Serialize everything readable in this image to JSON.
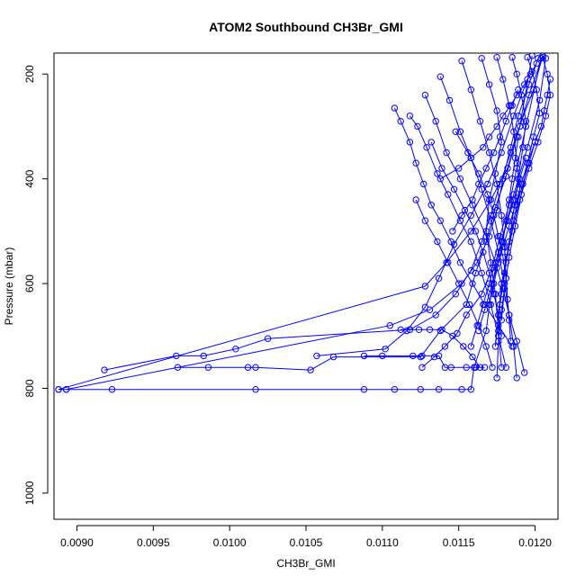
{
  "chart_data": {
    "type": "line",
    "title": "ATOM2 Southbound CH3Br_GMI",
    "xlabel": "CH3Br_GMI",
    "ylabel": "Pressure (mbar)",
    "xlim": [
      0.00885,
      0.01215
    ],
    "ylim": [
      1050,
      160
    ],
    "y_inverted": true,
    "xticks": [
      0.009,
      0.0095,
      0.01,
      0.0105,
      0.011,
      0.0115,
      0.012
    ],
    "xtick_labels": [
      "0.0090",
      "0.0095",
      "0.0100",
      "0.0105",
      "0.0110",
      "0.0115",
      "0.0120"
    ],
    "yticks": [
      200,
      400,
      600,
      800,
      1000
    ],
    "ytick_labels": [
      "200",
      "400",
      "600",
      "800",
      "1000"
    ],
    "grid": false,
    "legend": "none",
    "color": "#0000ff",
    "marker": "open-circle",
    "series": [
      {
        "x": [
          0.00888,
          0.00893,
          0.00923,
          0.01017,
          0.01088,
          0.01108,
          0.01125,
          0.01137,
          0.01152,
          0.01158,
          0.0116,
          0.01168,
          0.01172,
          0.01178,
          0.01186,
          0.01195,
          0.01203,
          0.01207
        ],
        "y": [
          802,
          802,
          802,
          802,
          802,
          802,
          802,
          802,
          802,
          802,
          760,
          690,
          600,
          520,
          430,
          340,
          250,
          170
        ]
      },
      {
        "x": [
          0.00918,
          0.00965,
          0.00983,
          0.01004,
          0.01025,
          0.01118,
          0.01135,
          0.01148,
          0.01158,
          0.01165,
          0.01171,
          0.01177,
          0.01184,
          0.01191,
          0.01199,
          0.01205
        ],
        "y": [
          765,
          738,
          738,
          725,
          705,
          688,
          660,
          620,
          575,
          520,
          470,
          410,
          350,
          290,
          230,
          165
        ]
      },
      {
        "x": [
          0.00966,
          0.00986,
          0.01012,
          0.01017,
          0.01053,
          0.01068,
          0.01125,
          0.01138,
          0.01155,
          0.01161,
          0.01168,
          0.01174,
          0.01181,
          0.01188,
          0.01196,
          0.01205
        ],
        "y": [
          760,
          760,
          760,
          760,
          765,
          740,
          740,
          690,
          640,
          580,
          520,
          455,
          395,
          320,
          240,
          165
        ]
      },
      {
        "x": [
          0.00893,
          0.01105,
          0.01131,
          0.01152,
          0.01162,
          0.0117,
          0.01175,
          0.01179,
          0.01184,
          0.01189,
          0.01196,
          0.01202
        ],
        "y": [
          802,
          680,
          650,
          600,
          560,
          510,
          460,
          400,
          340,
          280,
          220,
          170
        ]
      },
      {
        "x": [
          0.00888,
          0.01128,
          0.01142,
          0.01158,
          0.01171,
          0.01182,
          0.0119,
          0.01198
        ],
        "y": [
          802,
          605,
          560,
          500,
          440,
          380,
          300,
          165
        ]
      },
      {
        "x": [
          0.01126,
          0.01134,
          0.01141,
          0.01149,
          0.01155,
          0.01165,
          0.01172,
          0.01177,
          0.01183,
          0.01188,
          0.01194,
          0.01204
        ],
        "y": [
          760,
          740,
          720,
          695,
          660,
          620,
          570,
          510,
          450,
          380,
          300,
          170
        ]
      },
      {
        "x": [
          0.01057,
          0.01102,
          0.01116,
          0.01128,
          0.01137,
          0.01147,
          0.01158,
          0.01169,
          0.01178,
          0.01186,
          0.01195
        ],
        "y": [
          738,
          725,
          690,
          645,
          590,
          525,
          470,
          410,
          350,
          280,
          210
        ]
      },
      {
        "x": [
          0.01108,
          0.01112,
          0.01118,
          0.01122,
          0.01127,
          0.01132,
          0.01138,
          0.01145,
          0.01151,
          0.01159,
          0.01167,
          0.01176,
          0.01185
        ],
        "y": [
          265,
          290,
          330,
          370,
          410,
          450,
          480,
          520,
          560,
          600,
          640,
          680,
          720
        ]
      },
      {
        "x": [
          0.01118,
          0.01123,
          0.01129,
          0.01136,
          0.01143,
          0.01151,
          0.01158,
          0.01165,
          0.01171,
          0.01176,
          0.01181
        ],
        "y": [
          280,
          300,
          340,
          390,
          430,
          480,
          520,
          580,
          640,
          700,
          760
        ]
      },
      {
        "x": [
          0.01128,
          0.01135,
          0.01142,
          0.01151,
          0.01159,
          0.01168,
          0.01174,
          0.01179,
          0.01183,
          0.01188,
          0.01193
        ],
        "y": [
          240,
          290,
          350,
          400,
          450,
          510,
          560,
          610,
          660,
          710,
          770
        ]
      },
      {
        "x": [
          0.01138,
          0.01144,
          0.01151,
          0.01158,
          0.01165,
          0.01171,
          0.01176,
          0.0118,
          0.01183,
          0.01186,
          0.01188
        ],
        "y": [
          205,
          250,
          310,
          360,
          420,
          480,
          540,
          600,
          660,
          720,
          780
        ]
      },
      {
        "x": [
          0.01152,
          0.01158,
          0.01164,
          0.0117,
          0.01175,
          0.01178,
          0.0118,
          0.01181,
          0.01178,
          0.01176,
          0.01175
        ],
        "y": [
          175,
          230,
          290,
          350,
          410,
          470,
          530,
          590,
          650,
          710,
          780
        ]
      },
      {
        "x": [
          0.01165,
          0.0117,
          0.01175,
          0.01178,
          0.01174,
          0.0117,
          0.01168,
          0.01171,
          0.01174,
          0.01176,
          0.01178
        ],
        "y": [
          170,
          220,
          270,
          330,
          390,
          440,
          500,
          560,
          620,
          690,
          760
        ]
      },
      {
        "x": [
          0.01175,
          0.01179,
          0.01183,
          0.01186,
          0.01188,
          0.0119,
          0.01186,
          0.01182,
          0.01178,
          0.01176,
          0.01174
        ],
        "y": [
          168,
          210,
          260,
          310,
          370,
          420,
          480,
          540,
          600,
          660,
          720
        ]
      },
      {
        "x": [
          0.01185,
          0.01188,
          0.01191,
          0.01194,
          0.01192,
          0.01189,
          0.01186,
          0.01183,
          0.0118,
          0.01177,
          0.01176
        ],
        "y": [
          168,
          200,
          240,
          290,
          340,
          400,
          460,
          520,
          580,
          640,
          700
        ]
      },
      {
        "x": [
          0.01195,
          0.01198,
          0.01201,
          0.01203,
          0.01199,
          0.01195,
          0.01191,
          0.01187,
          0.01183,
          0.0118,
          0.01178
        ],
        "y": [
          168,
          195,
          230,
          275,
          320,
          370,
          430,
          490,
          550,
          610,
          670
        ]
      },
      {
        "x": [
          0.01205,
          0.01208,
          0.0121,
          0.01207,
          0.01202,
          0.01196,
          0.0119,
          0.01185,
          0.01181,
          0.01178
        ],
        "y": [
          168,
          200,
          240,
          280,
          330,
          380,
          440,
          500,
          560,
          620
        ]
      },
      {
        "x": [
          0.01148,
          0.01156,
          0.01163,
          0.01169,
          0.01173,
          0.01176,
          0.01179,
          0.01181,
          0.01182,
          0.01183,
          0.01184
        ],
        "y": [
          310,
          350,
          390,
          430,
          470,
          510,
          550,
          590,
          630,
          670,
          710
        ]
      },
      {
        "x": [
          0.01132,
          0.01139,
          0.01147,
          0.01154,
          0.01161,
          0.01166,
          0.0117,
          0.01173,
          0.01176,
          0.01178
        ],
        "y": [
          330,
          380,
          420,
          460,
          500,
          540,
          580,
          620,
          660,
          700
        ]
      },
      {
        "x": [
          0.01122,
          0.01128,
          0.01136,
          0.01143,
          0.0115,
          0.01157,
          0.01163,
          0.01168,
          0.01172
        ],
        "y": [
          440,
          480,
          520,
          560,
          600,
          640,
          680,
          720,
          760
        ]
      },
      {
        "x": [
          0.01112,
          0.01118,
          0.01124,
          0.01131,
          0.01139,
          0.01146,
          0.01153,
          0.01159,
          0.01164
        ],
        "y": [
          688,
          688,
          688,
          688,
          688,
          700,
          720,
          740,
          760
        ]
      },
      {
        "x": [
          0.01088,
          0.011,
          0.0112,
          0.01126,
          0.01137,
          0.01141,
          0.01145,
          0.01155,
          0.01161,
          0.01167
        ],
        "y": [
          738,
          738,
          738,
          738,
          738,
          760,
          760,
          760,
          760,
          760
        ]
      },
      {
        "x": [
          0.01138,
          0.0115,
          0.01158,
          0.01166,
          0.0117,
          0.01175,
          0.01179,
          0.01184,
          0.01188,
          0.01193,
          0.01197,
          0.01201
        ],
        "y": [
          400,
          380,
          360,
          340,
          320,
          300,
          280,
          260,
          240,
          220,
          200,
          180
        ]
      },
      {
        "x": [
          0.01146,
          0.01152,
          0.01159,
          0.01163,
          0.01168,
          0.01173,
          0.01177,
          0.01181,
          0.01185,
          0.01189
        ],
        "y": [
          500,
          470,
          440,
          410,
          380,
          350,
          320,
          290,
          260,
          230
        ]
      },
      {
        "x": [
          0.01158,
          0.01162,
          0.01166,
          0.0117,
          0.01174,
          0.01178,
          0.01182,
          0.01186,
          0.0119,
          0.01194
        ],
        "y": [
          720,
          680,
          640,
          600,
          560,
          520,
          480,
          440,
          400,
          360
        ]
      },
      {
        "x": [
          0.01163,
          0.01167,
          0.01171,
          0.01175,
          0.01179,
          0.01183,
          0.01187,
          0.01191,
          0.01195,
          0.012
        ],
        "y": [
          690,
          650,
          610,
          570,
          530,
          490,
          450,
          410,
          370,
          330
        ]
      },
      {
        "x": [
          0.01188,
          0.01192,
          0.01196,
          0.012,
          0.01204,
          0.01206,
          0.01208,
          0.0121
        ],
        "y": [
          450,
          410,
          370,
          330,
          300,
          270,
          240,
          210
        ]
      },
      {
        "x": [
          0.0117,
          0.01173,
          0.01176,
          0.01179,
          0.01181,
          0.01183,
          0.01185,
          0.01187,
          0.01189
        ],
        "y": [
          640,
          600,
          560,
          520,
          480,
          440,
          400,
          360,
          320
        ]
      }
    ]
  }
}
